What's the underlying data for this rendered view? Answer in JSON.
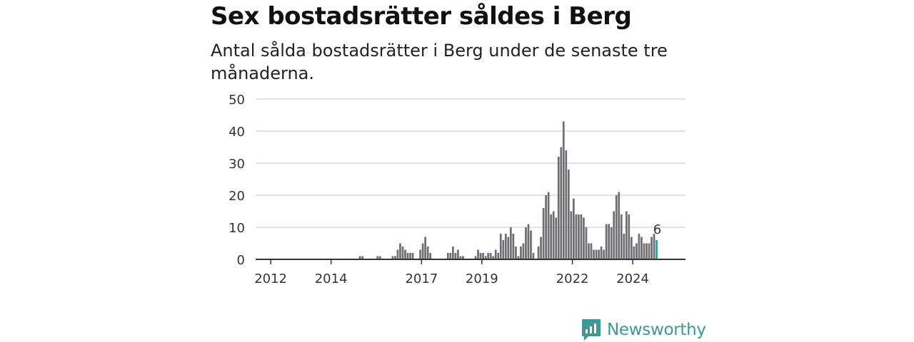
{
  "title": "Sex bostadsrätter såldes i Berg",
  "subtitle": "Antal sålda bostadsrätter i Berg under de senaste tre månaderna.",
  "brand": {
    "name": "Newsworthy",
    "icon": "newsworthy-logo-icon",
    "color": "#3a9a94"
  },
  "colors": {
    "bar": "#6e6e73",
    "highlight": "#2a9d8f",
    "grid": "#d9d9d9",
    "axis": "#333333"
  },
  "chart_data": {
    "type": "bar",
    "title": "Sex bostadsrätter såldes i Berg",
    "subtitle": "Antal sålda bostadsrätter i Berg under de senaste tre månaderna.",
    "xlabel": "",
    "ylabel": "",
    "ylim": [
      0,
      50
    ],
    "yticks": [
      0,
      10,
      20,
      30,
      40,
      50
    ],
    "xlim": [
      2011.5,
      2025.75
    ],
    "xticks": [
      "2012",
      "2014",
      "2017",
      "2019",
      "2022",
      "2024"
    ],
    "grid": "horizontal",
    "period": "monthly",
    "highlight_label": "6",
    "series": [
      {
        "values": [
          {
            "x": "2014-12",
            "y": 1
          },
          {
            "x": "2015-01",
            "y": 1
          },
          {
            "x": "2015-07",
            "y": 1
          },
          {
            "x": "2015-08",
            "y": 1
          },
          {
            "x": "2016-01",
            "y": 1
          },
          {
            "x": "2016-02",
            "y": 1
          },
          {
            "x": "2016-03",
            "y": 3
          },
          {
            "x": "2016-04",
            "y": 5
          },
          {
            "x": "2016-05",
            "y": 4
          },
          {
            "x": "2016-06",
            "y": 3
          },
          {
            "x": "2016-07",
            "y": 2
          },
          {
            "x": "2016-08",
            "y": 2
          },
          {
            "x": "2016-09",
            "y": 2
          },
          {
            "x": "2016-12",
            "y": 3
          },
          {
            "x": "2017-01",
            "y": 5
          },
          {
            "x": "2017-02",
            "y": 7
          },
          {
            "x": "2017-03",
            "y": 4
          },
          {
            "x": "2017-04",
            "y": 2
          },
          {
            "x": "2017-11",
            "y": 2
          },
          {
            "x": "2017-12",
            "y": 2
          },
          {
            "x": "2018-01",
            "y": 4
          },
          {
            "x": "2018-02",
            "y": 2
          },
          {
            "x": "2018-03",
            "y": 3
          },
          {
            "x": "2018-04",
            "y": 1
          },
          {
            "x": "2018-05",
            "y": 1
          },
          {
            "x": "2018-10",
            "y": 1
          },
          {
            "x": "2018-11",
            "y": 3
          },
          {
            "x": "2018-12",
            "y": 2
          },
          {
            "x": "2019-01",
            "y": 2
          },
          {
            "x": "2019-02",
            "y": 1
          },
          {
            "x": "2019-03",
            "y": 2
          },
          {
            "x": "2019-04",
            "y": 2
          },
          {
            "x": "2019-05",
            "y": 1
          },
          {
            "x": "2019-06",
            "y": 3
          },
          {
            "x": "2019-07",
            "y": 2
          },
          {
            "x": "2019-08",
            "y": 8
          },
          {
            "x": "2019-09",
            "y": 6
          },
          {
            "x": "2019-10",
            "y": 8
          },
          {
            "x": "2019-11",
            "y": 7
          },
          {
            "x": "2019-12",
            "y": 10
          },
          {
            "x": "2020-01",
            "y": 8
          },
          {
            "x": "2020-02",
            "y": 4
          },
          {
            "x": "2020-03",
            "y": 1
          },
          {
            "x": "2020-04",
            "y": 4
          },
          {
            "x": "2020-05",
            "y": 5
          },
          {
            "x": "2020-06",
            "y": 10
          },
          {
            "x": "2020-07",
            "y": 11
          },
          {
            "x": "2020-08",
            "y": 9
          },
          {
            "x": "2020-09",
            "y": 2
          },
          {
            "x": "2020-11",
            "y": 4
          },
          {
            "x": "2020-12",
            "y": 7
          },
          {
            "x": "2021-01",
            "y": 16
          },
          {
            "x": "2021-02",
            "y": 20
          },
          {
            "x": "2021-03",
            "y": 21
          },
          {
            "x": "2021-04",
            "y": 14
          },
          {
            "x": "2021-05",
            "y": 15
          },
          {
            "x": "2021-06",
            "y": 13
          },
          {
            "x": "2021-07",
            "y": 32
          },
          {
            "x": "2021-08",
            "y": 35
          },
          {
            "x": "2021-09",
            "y": 43
          },
          {
            "x": "2021-10",
            "y": 34
          },
          {
            "x": "2021-11",
            "y": 28
          },
          {
            "x": "2021-12",
            "y": 15
          },
          {
            "x": "2022-01",
            "y": 19
          },
          {
            "x": "2022-02",
            "y": 14
          },
          {
            "x": "2022-03",
            "y": 14
          },
          {
            "x": "2022-04",
            "y": 14
          },
          {
            "x": "2022-05",
            "y": 13
          },
          {
            "x": "2022-06",
            "y": 10
          },
          {
            "x": "2022-07",
            "y": 5
          },
          {
            "x": "2022-08",
            "y": 5
          },
          {
            "x": "2022-09",
            "y": 3
          },
          {
            "x": "2022-10",
            "y": 3
          },
          {
            "x": "2022-11",
            "y": 3
          },
          {
            "x": "2022-12",
            "y": 4
          },
          {
            "x": "2023-01",
            "y": 3
          },
          {
            "x": "2023-02",
            "y": 11
          },
          {
            "x": "2023-03",
            "y": 11
          },
          {
            "x": "2023-04",
            "y": 10
          },
          {
            "x": "2023-05",
            "y": 15
          },
          {
            "x": "2023-06",
            "y": 20
          },
          {
            "x": "2023-07",
            "y": 21
          },
          {
            "x": "2023-08",
            "y": 14
          },
          {
            "x": "2023-09",
            "y": 8
          },
          {
            "x": "2023-10",
            "y": 15
          },
          {
            "x": "2023-11",
            "y": 14
          },
          {
            "x": "2023-12",
            "y": 7
          },
          {
            "x": "2024-01",
            "y": 4
          },
          {
            "x": "2024-02",
            "y": 5
          },
          {
            "x": "2024-03",
            "y": 8
          },
          {
            "x": "2024-04",
            "y": 7
          },
          {
            "x": "2024-05",
            "y": 5
          },
          {
            "x": "2024-06",
            "y": 5
          },
          {
            "x": "2024-07",
            "y": 5
          },
          {
            "x": "2024-08",
            "y": 7
          },
          {
            "x": "2024-09",
            "y": 8
          },
          {
            "x": "2024-10",
            "y": 6
          }
        ]
      }
    ]
  }
}
